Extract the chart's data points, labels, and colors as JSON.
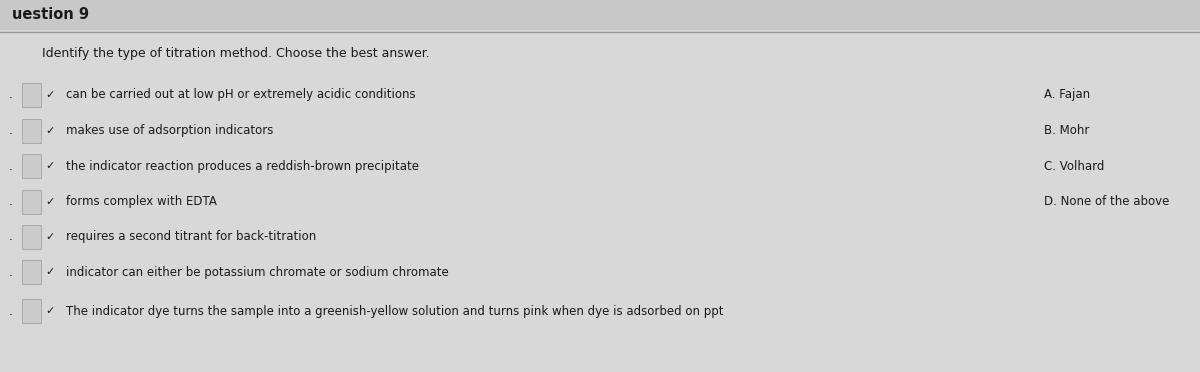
{
  "title": "uestion 9",
  "subtitle": "Identify the type of titration method. Choose the best answer.",
  "background_color": "#d8d8d8",
  "content_bg": "#e0e0e0",
  "title_bar_color": "#c8c8c8",
  "rows": [
    "can be carried out at low pH or extremely acidic conditions",
    "makes use of adsorption indicators",
    "the indicator reaction produces a reddish-brown precipitate",
    "forms complex with EDTA",
    "requires a second titrant for back-titration",
    "indicator can either be potassium chromate or sodium chromate",
    "The indicator dye turns the sample into a greenish-yellow solution and turns pink when dye is adsorbed on ppt"
  ],
  "choices": [
    "A. Fajan",
    "B. Mohr",
    "C. Volhard",
    "D. None of the above"
  ],
  "font_size_title": 10.5,
  "font_size_subtitle": 9.0,
  "font_size_rows": 8.5,
  "font_size_choices": 8.5,
  "text_color": "#1a1a1a",
  "box_edge_color": "#aaaaaa",
  "box_fill_color": "#cccccc",
  "line_color": "#999999"
}
